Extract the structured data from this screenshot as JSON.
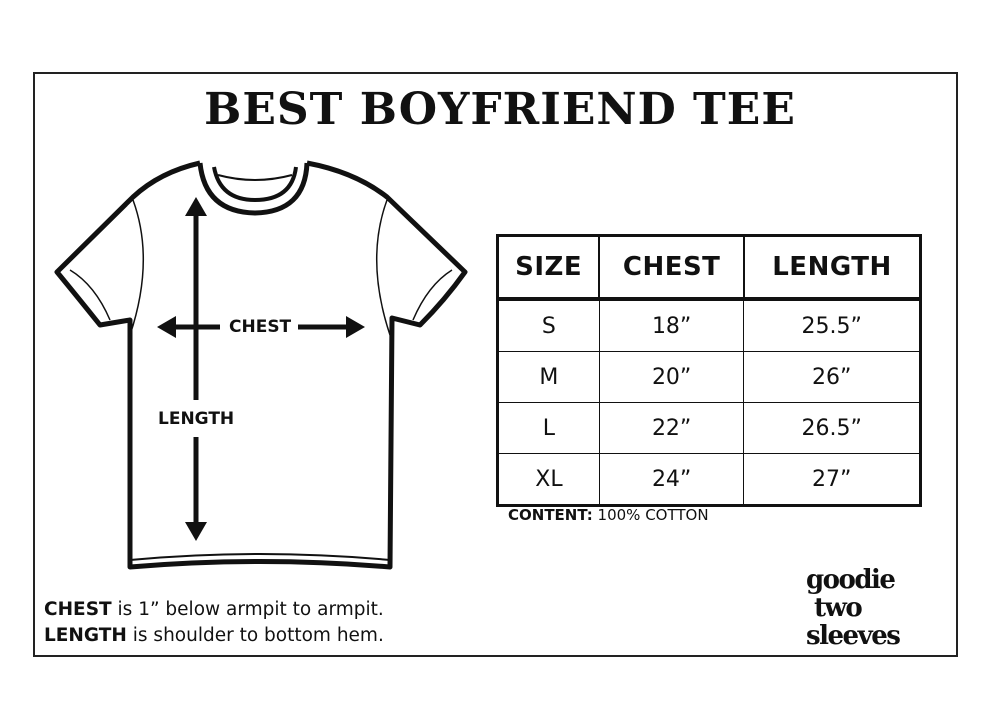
{
  "title": "BEST BOYFRIEND TEE",
  "diagram": {
    "chest_label": "CHEST",
    "length_label": "LENGTH"
  },
  "table": {
    "headers": [
      "SIZE",
      "CHEST",
      "LENGTH"
    ],
    "rows": [
      [
        "S",
        "18”",
        "25.5”"
      ],
      [
        "M",
        "20”",
        "26”"
      ],
      [
        "L",
        "22”",
        "26.5”"
      ],
      [
        "XL",
        "24”",
        "27”"
      ]
    ]
  },
  "content": {
    "label": "CONTENT:",
    "value": "100% COTTON"
  },
  "notes": [
    {
      "term": "CHEST",
      "text": "is 1” below armpit to armpit."
    },
    {
      "term": "LENGTH",
      "text": "is shoulder to bottom hem."
    }
  ],
  "logo": {
    "lines": [
      "goodie",
      "two",
      "sleeves"
    ]
  }
}
